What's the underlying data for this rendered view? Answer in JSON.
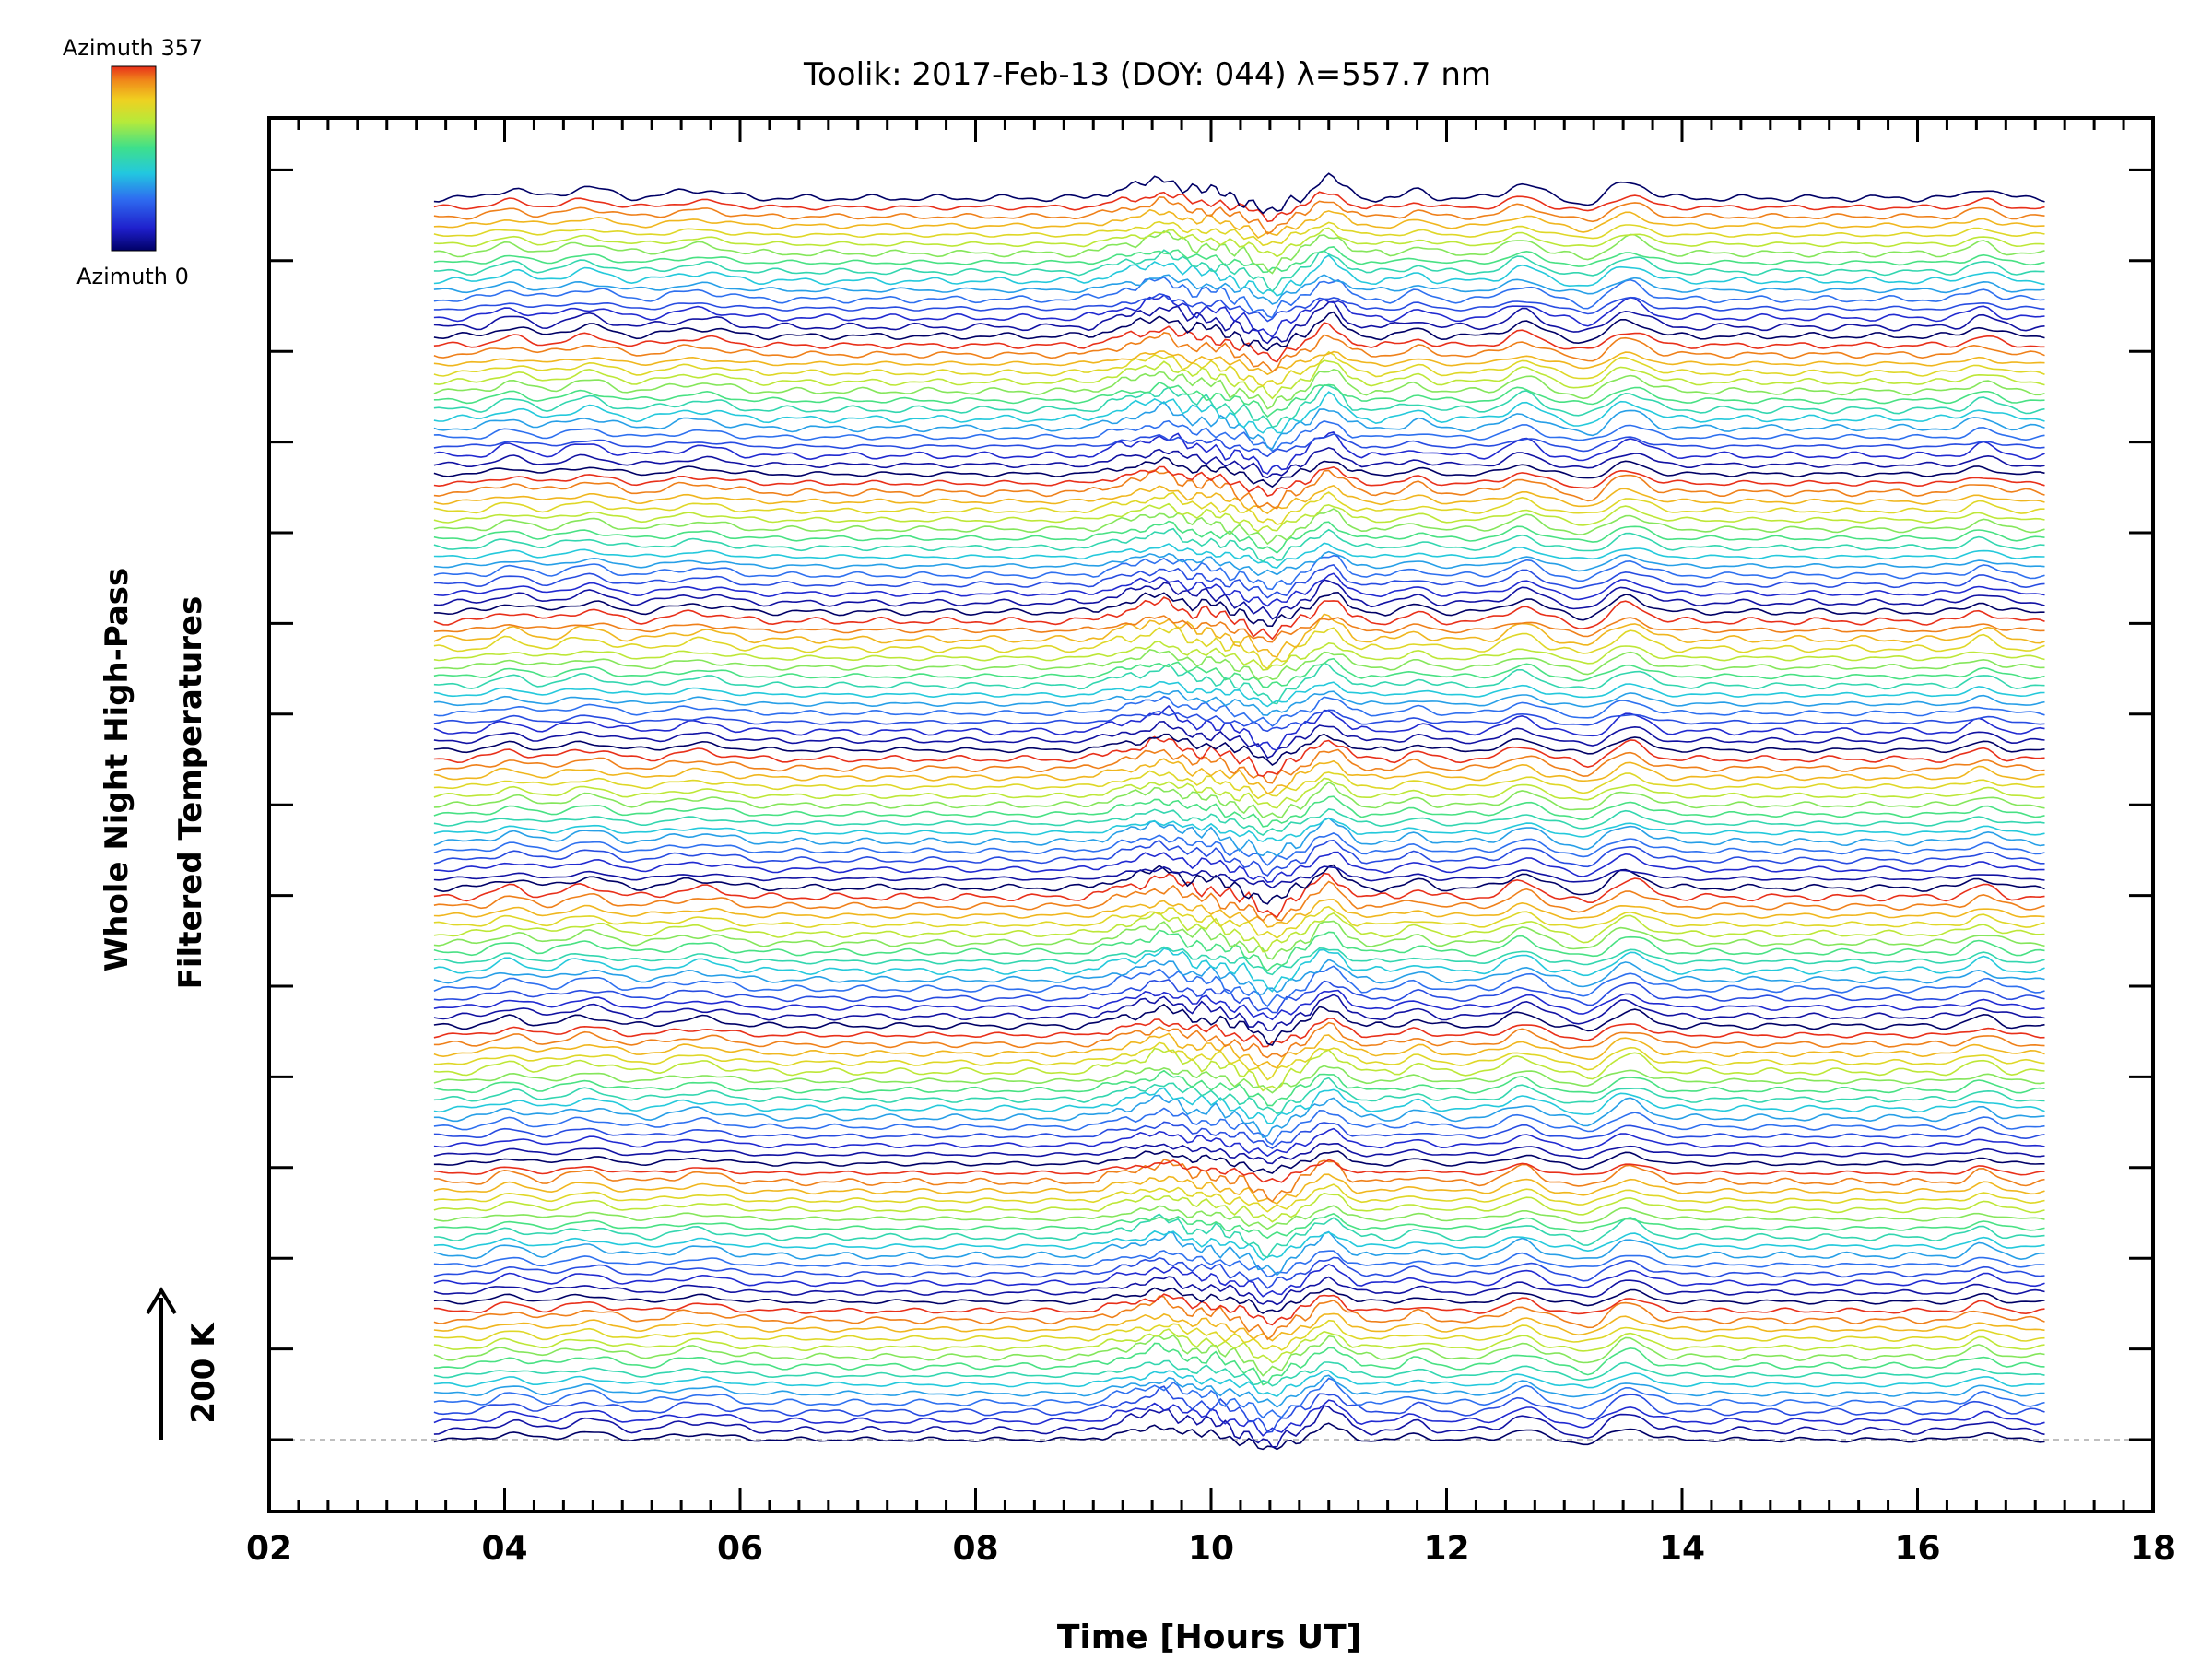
{
  "chart_data": {
    "type": "line",
    "title": "Toolik: 2017-Feb-13 (DOY: 044) λ=557.7 nm",
    "xlabel": "Time [Hours UT]",
    "ylabel_line1": "Whole Night High-Pass",
    "ylabel_line2": "Filtered Temperatures",
    "xlim": [
      2,
      18
    ],
    "x_ticks": [
      "02",
      "04",
      "06",
      "08",
      "10",
      "12",
      "14",
      "16",
      "18"
    ],
    "x_tick_values": [
      2,
      4,
      6,
      8,
      10,
      12,
      14,
      16,
      18
    ],
    "data_range_hours": [
      3.4,
      17.1
    ],
    "scale_bar_label": "200 K",
    "scale_bar_value_K": 200,
    "colorbar": {
      "top_label": "Azimuth 357",
      "bottom_label": "Azimuth 0",
      "colormap": "rainbow",
      "range": [
        0,
        357
      ]
    },
    "series_count": 136,
    "groups": 9,
    "series_per_group": 15,
    "azimuth_sequence": "0 to 357 deg repeating for each zenith ring",
    "colors": {
      "colorbar_stops": [
        "#000066",
        "#1f1fcc",
        "#2e6cf0",
        "#22c8e0",
        "#3fe08a",
        "#b6ea3a",
        "#f0d020",
        "#f08a1a",
        "#e8301a"
      ]
    },
    "features": [
      {
        "time": 9.6,
        "note": "wave burst peak"
      },
      {
        "time": 10.5,
        "note": "dip"
      },
      {
        "time": 11.0,
        "note": "peak"
      },
      {
        "time": 12.6,
        "note": "peak"
      },
      {
        "time": 13.6,
        "note": "peak"
      },
      {
        "time": 16.6,
        "note": "peak"
      }
    ]
  }
}
